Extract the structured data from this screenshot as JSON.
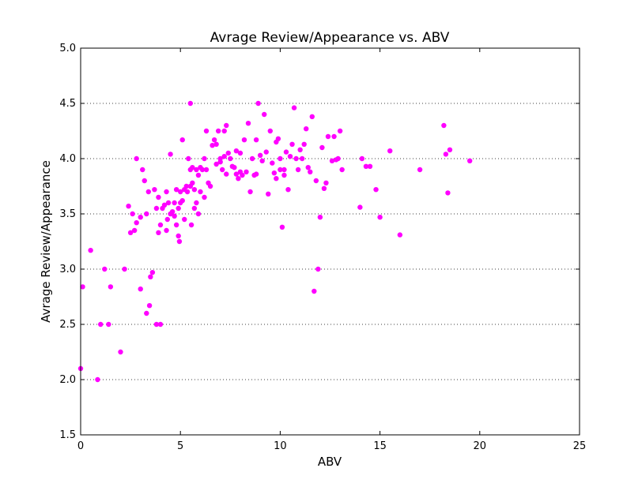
{
  "chart_data": {
    "type": "scatter",
    "title": "Avrage Review/Appearance vs. ABV",
    "xlabel": "ABV",
    "ylabel": "Avrage Review/Appearance",
    "xlim": [
      0,
      25
    ],
    "ylim": [
      1.5,
      5.0
    ],
    "xticks": [
      "0",
      "5",
      "10",
      "15",
      "20",
      "25"
    ],
    "yticks": [
      "1.5",
      "2.0",
      "2.5",
      "3.0",
      "3.5",
      "4.0",
      "4.5",
      "5.0"
    ],
    "grid": "horizontal dotted",
    "marker_color": "#ff00ff",
    "points": [
      [
        0.0,
        2.1
      ],
      [
        0.1,
        2.84
      ],
      [
        0.5,
        3.17
      ],
      [
        0.85,
        2.0
      ],
      [
        1.0,
        2.5
      ],
      [
        1.2,
        3.0
      ],
      [
        1.4,
        2.5
      ],
      [
        1.5,
        2.84
      ],
      [
        2.0,
        2.25
      ],
      [
        2.2,
        3.0
      ],
      [
        2.4,
        3.57
      ],
      [
        2.5,
        3.33
      ],
      [
        2.6,
        3.5
      ],
      [
        2.7,
        3.35
      ],
      [
        2.8,
        4.0
      ],
      [
        2.8,
        3.42
      ],
      [
        3.0,
        2.82
      ],
      [
        3.0,
        3.47
      ],
      [
        3.1,
        3.9
      ],
      [
        3.2,
        3.8
      ],
      [
        3.3,
        2.6
      ],
      [
        3.3,
        3.5
      ],
      [
        3.4,
        3.7
      ],
      [
        3.45,
        2.67
      ],
      [
        3.5,
        2.93
      ],
      [
        3.6,
        2.97
      ],
      [
        3.7,
        3.72
      ],
      [
        3.8,
        2.5
      ],
      [
        3.8,
        3.55
      ],
      [
        3.9,
        3.33
      ],
      [
        3.9,
        3.65
      ],
      [
        4.0,
        2.5
      ],
      [
        4.0,
        3.4
      ],
      [
        4.1,
        3.55
      ],
      [
        4.2,
        3.58
      ],
      [
        4.3,
        3.35
      ],
      [
        4.3,
        3.7
      ],
      [
        4.35,
        3.45
      ],
      [
        4.4,
        3.6
      ],
      [
        4.5,
        3.5
      ],
      [
        4.5,
        4.04
      ],
      [
        4.6,
        3.52
      ],
      [
        4.7,
        3.6
      ],
      [
        4.7,
        3.48
      ],
      [
        4.8,
        3.72
      ],
      [
        4.8,
        3.4
      ],
      [
        4.9,
        3.55
      ],
      [
        4.9,
        3.3
      ],
      [
        4.95,
        3.25
      ],
      [
        5.0,
        3.6
      ],
      [
        5.0,
        3.7
      ],
      [
        5.1,
        3.62
      ],
      [
        5.1,
        4.17
      ],
      [
        5.2,
        3.72
      ],
      [
        5.2,
        3.45
      ],
      [
        5.3,
        3.75
      ],
      [
        5.35,
        3.7
      ],
      [
        5.4,
        4.0
      ],
      [
        5.5,
        4.5
      ],
      [
        5.5,
        3.9
      ],
      [
        5.5,
        3.75
      ],
      [
        5.55,
        3.4
      ],
      [
        5.6,
        3.92
      ],
      [
        5.6,
        3.78
      ],
      [
        5.7,
        3.72
      ],
      [
        5.7,
        3.55
      ],
      [
        5.8,
        3.9
      ],
      [
        5.8,
        3.6
      ],
      [
        5.9,
        3.85
      ],
      [
        5.9,
        3.5
      ],
      [
        6.0,
        3.92
      ],
      [
        6.0,
        3.7
      ],
      [
        6.1,
        3.9
      ],
      [
        6.2,
        3.65
      ],
      [
        6.2,
        4.0
      ],
      [
        6.3,
        4.25
      ],
      [
        6.3,
        3.9
      ],
      [
        6.4,
        3.78
      ],
      [
        6.5,
        3.75
      ],
      [
        6.6,
        4.12
      ],
      [
        6.7,
        4.17
      ],
      [
        6.8,
        4.13
      ],
      [
        6.8,
        3.95
      ],
      [
        6.9,
        4.25
      ],
      [
        7.0,
        4.0
      ],
      [
        7.0,
        3.97
      ],
      [
        7.1,
        3.9
      ],
      [
        7.2,
        4.25
      ],
      [
        7.2,
        4.02
      ],
      [
        7.3,
        4.3
      ],
      [
        7.3,
        3.86
      ],
      [
        7.4,
        4.05
      ],
      [
        7.5,
        4.0
      ],
      [
        7.6,
        3.93
      ],
      [
        7.7,
        3.92
      ],
      [
        7.8,
        4.07
      ],
      [
        7.8,
        3.86
      ],
      [
        7.9,
        3.82
      ],
      [
        8.0,
        3.88
      ],
      [
        8.0,
        4.05
      ],
      [
        8.1,
        3.85
      ],
      [
        8.2,
        4.17
      ],
      [
        8.3,
        3.88
      ],
      [
        8.4,
        4.32
      ],
      [
        8.5,
        3.7
      ],
      [
        8.6,
        4.0
      ],
      [
        8.7,
        3.85
      ],
      [
        8.8,
        4.17
      ],
      [
        8.8,
        3.86
      ],
      [
        8.9,
        4.5
      ],
      [
        9.0,
        4.03
      ],
      [
        9.1,
        3.98
      ],
      [
        9.2,
        4.4
      ],
      [
        9.3,
        4.06
      ],
      [
        9.4,
        3.68
      ],
      [
        9.5,
        4.25
      ],
      [
        9.6,
        3.96
      ],
      [
        9.7,
        3.87
      ],
      [
        9.8,
        4.15
      ],
      [
        9.8,
        3.82
      ],
      [
        9.9,
        4.18
      ],
      [
        10.0,
        3.9
      ],
      [
        10.0,
        4.0
      ],
      [
        10.1,
        3.38
      ],
      [
        10.2,
        3.9
      ],
      [
        10.2,
        3.85
      ],
      [
        10.3,
        4.06
      ],
      [
        10.4,
        3.72
      ],
      [
        10.5,
        4.02
      ],
      [
        10.6,
        4.13
      ],
      [
        10.7,
        4.46
      ],
      [
        10.8,
        4.0
      ],
      [
        10.9,
        3.9
      ],
      [
        11.0,
        4.08
      ],
      [
        11.1,
        4.0
      ],
      [
        11.2,
        4.13
      ],
      [
        11.3,
        4.27
      ],
      [
        11.4,
        3.92
      ],
      [
        11.5,
        3.88
      ],
      [
        11.6,
        4.38
      ],
      [
        11.7,
        2.8
      ],
      [
        11.8,
        3.8
      ],
      [
        11.9,
        3.0
      ],
      [
        12.0,
        3.47
      ],
      [
        12.1,
        4.1
      ],
      [
        12.2,
        3.73
      ],
      [
        12.3,
        3.78
      ],
      [
        12.4,
        4.2
      ],
      [
        12.6,
        3.98
      ],
      [
        12.7,
        4.2
      ],
      [
        12.8,
        3.99
      ],
      [
        12.9,
        4.0
      ],
      [
        13.0,
        4.25
      ],
      [
        13.1,
        3.9
      ],
      [
        14.0,
        3.56
      ],
      [
        14.1,
        4.0
      ],
      [
        14.3,
        3.93
      ],
      [
        14.5,
        3.93
      ],
      [
        14.8,
        3.72
      ],
      [
        15.0,
        3.47
      ],
      [
        15.5,
        4.07
      ],
      [
        16.0,
        3.31
      ],
      [
        17.0,
        3.9
      ],
      [
        18.2,
        4.3
      ],
      [
        18.3,
        4.04
      ],
      [
        18.4,
        3.69
      ],
      [
        18.5,
        4.08
      ],
      [
        19.5,
        3.98
      ]
    ]
  }
}
